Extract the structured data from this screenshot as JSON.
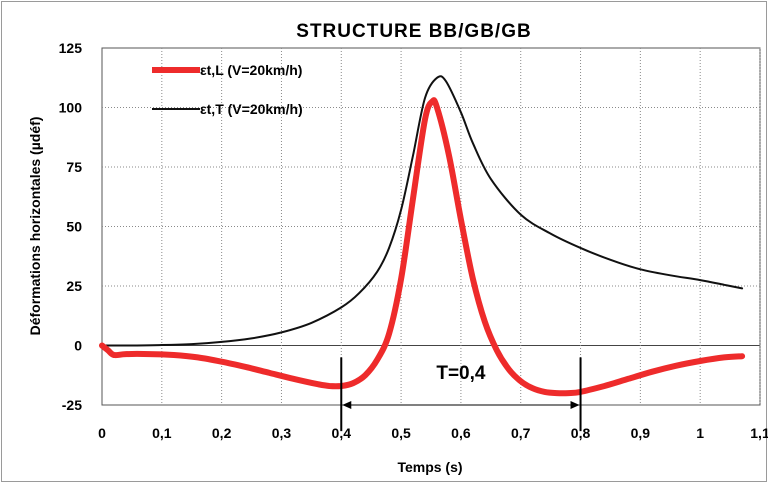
{
  "chart_data": {
    "type": "line",
    "title": "STRUCTURE  BB/GB/GB",
    "xlabel": "Temps (s)",
    "ylabel": "Déformations horizontales (µdéf)",
    "xlim": [
      0,
      1.1
    ],
    "ylim": [
      -25,
      125
    ],
    "x_ticks": [
      "0",
      "0,1",
      "0,2",
      "0,3",
      "0,4",
      "0,5",
      "0,6",
      "0,7",
      "0,8",
      "0,9",
      "1",
      "1,1"
    ],
    "y_ticks": [
      "125",
      "100",
      "75",
      "50",
      "25",
      "0",
      "-25"
    ],
    "grid": true,
    "legend_position": "top-left",
    "series": [
      {
        "name": "εt,L (V=20km/h)",
        "color": "#ee2b2b",
        "points": [
          [
            0,
            0
          ],
          [
            0.01,
            -2
          ],
          [
            0.02,
            -4
          ],
          [
            0.04,
            -3.6
          ],
          [
            0.08,
            -3.6
          ],
          [
            0.12,
            -4
          ],
          [
            0.16,
            -5
          ],
          [
            0.2,
            -6.8
          ],
          [
            0.24,
            -9
          ],
          [
            0.28,
            -11.5
          ],
          [
            0.32,
            -14
          ],
          [
            0.36,
            -16.2
          ],
          [
            0.38,
            -17
          ],
          [
            0.4,
            -17
          ],
          [
            0.42,
            -15.8
          ],
          [
            0.44,
            -12.5
          ],
          [
            0.46,
            -6
          ],
          [
            0.48,
            5
          ],
          [
            0.5,
            28
          ],
          [
            0.52,
            62
          ],
          [
            0.54,
            95
          ],
          [
            0.552,
            102.5
          ],
          [
            0.56,
            100
          ],
          [
            0.58,
            80
          ],
          [
            0.6,
            53
          ],
          [
            0.62,
            28
          ],
          [
            0.64,
            10
          ],
          [
            0.66,
            -2
          ],
          [
            0.68,
            -10
          ],
          [
            0.7,
            -15
          ],
          [
            0.72,
            -18
          ],
          [
            0.74,
            -19.5
          ],
          [
            0.76,
            -20
          ],
          [
            0.78,
            -20
          ],
          [
            0.8,
            -19.5
          ],
          [
            0.84,
            -17
          ],
          [
            0.88,
            -14
          ],
          [
            0.92,
            -11
          ],
          [
            0.96,
            -8.5
          ],
          [
            1.0,
            -6.5
          ],
          [
            1.04,
            -5
          ],
          [
            1.07,
            -4.5
          ]
        ]
      },
      {
        "name": "εt,T (V=20km/h)",
        "color": "#111111",
        "points": [
          [
            0,
            0
          ],
          [
            0.05,
            0
          ],
          [
            0.1,
            0.2
          ],
          [
            0.15,
            0.6
          ],
          [
            0.2,
            1.5
          ],
          [
            0.25,
            3
          ],
          [
            0.3,
            5.5
          ],
          [
            0.35,
            9.5
          ],
          [
            0.4,
            16
          ],
          [
            0.43,
            22
          ],
          [
            0.46,
            31
          ],
          [
            0.48,
            41
          ],
          [
            0.5,
            57
          ],
          [
            0.52,
            80
          ],
          [
            0.54,
            104
          ],
          [
            0.56,
            112.5
          ],
          [
            0.575,
            111
          ],
          [
            0.6,
            98
          ],
          [
            0.62,
            85
          ],
          [
            0.65,
            70
          ],
          [
            0.7,
            55
          ],
          [
            0.75,
            47
          ],
          [
            0.8,
            41
          ],
          [
            0.85,
            36
          ],
          [
            0.9,
            32
          ],
          [
            0.95,
            29.5
          ],
          [
            1.0,
            27.5
          ],
          [
            1.04,
            25.5
          ],
          [
            1.07,
            24
          ]
        ]
      }
    ],
    "annotation": {
      "text": "T=0,4",
      "x_start": 0.4,
      "x_end": 0.8
    }
  }
}
